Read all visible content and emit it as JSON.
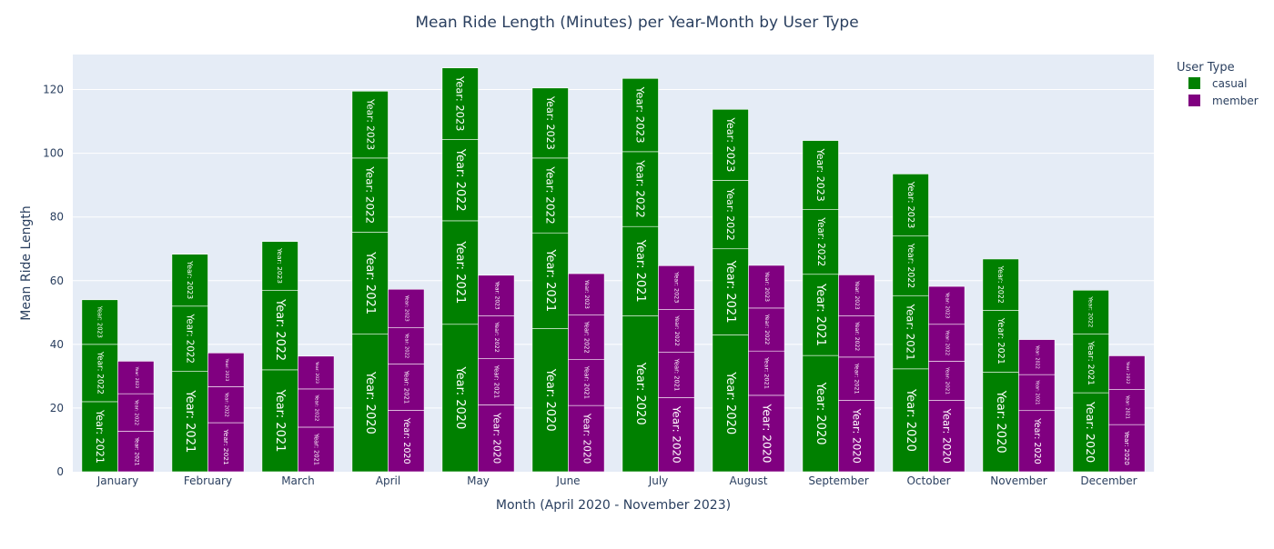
{
  "chart_data": {
    "type": "bar",
    "barmode": "group-stacked",
    "title": "Mean Ride Length (Minutes) per Year-Month by User Type",
    "xlabel": "Month (April 2020 - November 2023)",
    "ylabel": "Mean Ride Length",
    "ylim": [
      0,
      131
    ],
    "yticks": [
      0,
      20,
      40,
      60,
      80,
      100,
      120
    ],
    "grid": true,
    "legend": {
      "title": "User Type",
      "position": "top-right"
    },
    "categories": [
      "January",
      "February",
      "March",
      "April",
      "May",
      "June",
      "July",
      "August",
      "September",
      "October",
      "November",
      "December"
    ],
    "series": [
      {
        "name": "casual",
        "color": "#008000",
        "stacks": [
          [
            {
              "label": "Year: 2021",
              "value": 22
            },
            {
              "label": "Year: 2022",
              "value": 18
            },
            {
              "label": "Year: 2023",
              "value": 14
            }
          ],
          [
            {
              "label": "Year: 2021",
              "value": 31.5
            },
            {
              "label": "Year: 2022",
              "value": 20.5
            },
            {
              "label": "Year: 2023",
              "value": 16.3
            }
          ],
          [
            {
              "label": "Year: 2021",
              "value": 32
            },
            {
              "label": "Year: 2022",
              "value": 25
            },
            {
              "label": "Year: 2023",
              "value": 15.3
            }
          ],
          [
            {
              "label": "Year: 2020",
              "value": 43.2
            },
            {
              "label": "Year: 2021",
              "value": 32
            },
            {
              "label": "Year: 2022",
              "value": 23.3
            },
            {
              "label": "Year: 2023",
              "value": 21
            }
          ],
          [
            {
              "label": "Year: 2020",
              "value": 46.3
            },
            {
              "label": "Year: 2021",
              "value": 32.5
            },
            {
              "label": "Year: 2022",
              "value": 25.5
            },
            {
              "label": "Year: 2023",
              "value": 22.5
            }
          ],
          [
            {
              "label": "Year: 2020",
              "value": 45
            },
            {
              "label": "Year: 2021",
              "value": 30
            },
            {
              "label": "Year: 2022",
              "value": 23.5
            },
            {
              "label": "Year: 2023",
              "value": 22
            }
          ],
          [
            {
              "label": "Year: 2020",
              "value": 49
            },
            {
              "label": "Year: 2021",
              "value": 28
            },
            {
              "label": "Year: 2022",
              "value": 23.5
            },
            {
              "label": "Year: 2023",
              "value": 23
            }
          ],
          [
            {
              "label": "Year: 2020",
              "value": 43
            },
            {
              "label": "Year: 2021",
              "value": 27
            },
            {
              "label": "Year: 2022",
              "value": 21.5
            },
            {
              "label": "Year: 2023",
              "value": 22.3
            }
          ],
          [
            {
              "label": "Year: 2020",
              "value": 36.5
            },
            {
              "label": "Year: 2021",
              "value": 25.5
            },
            {
              "label": "Year: 2022",
              "value": 20.3
            },
            {
              "label": "Year: 2023",
              "value": 21.7
            }
          ],
          [
            {
              "label": "Year: 2020",
              "value": 32.3
            },
            {
              "label": "Year: 2021",
              "value": 23
            },
            {
              "label": "Year: 2022",
              "value": 18.7
            },
            {
              "label": "Year: 2023",
              "value": 19.5
            }
          ],
          [
            {
              "label": "Year: 2020",
              "value": 31.3
            },
            {
              "label": "Year: 2021",
              "value": 19.4
            },
            {
              "label": "Year: 2022",
              "value": 16.1
            }
          ],
          [
            {
              "label": "Year: 2020",
              "value": 24.8
            },
            {
              "label": "Year: 2021",
              "value": 18.5
            },
            {
              "label": "Year: 2022",
              "value": 13.7
            }
          ]
        ]
      },
      {
        "name": "member",
        "color": "#800080",
        "stacks": [
          [
            {
              "label": "Year: 2021",
              "value": 12.7
            },
            {
              "label": "Year: 2022",
              "value": 11.8
            },
            {
              "label": "Year: 2023",
              "value": 10.2
            }
          ],
          [
            {
              "label": "Year: 2021",
              "value": 15.4
            },
            {
              "label": "Year: 2022",
              "value": 11.3
            },
            {
              "label": "Year: 2023",
              "value": 10.6
            }
          ],
          [
            {
              "label": "Year: 2021",
              "value": 14
            },
            {
              "label": "Year: 2022",
              "value": 12
            },
            {
              "label": "Year: 2023",
              "value": 10.3
            }
          ],
          [
            {
              "label": "Year: 2020",
              "value": 19.3
            },
            {
              "label": "Year: 2021",
              "value": 14.5
            },
            {
              "label": "Year: 2022",
              "value": 11.5
            },
            {
              "label": "Year: 2023",
              "value": 12
            }
          ],
          [
            {
              "label": "Year: 2020",
              "value": 21
            },
            {
              "label": "Year: 2021",
              "value": 14.5
            },
            {
              "label": "Year: 2022",
              "value": 13.5
            },
            {
              "label": "Year: 2023",
              "value": 12.7
            }
          ],
          [
            {
              "label": "Year: 2020",
              "value": 20.8
            },
            {
              "label": "Year: 2021",
              "value": 14.4
            },
            {
              "label": "Year: 2022",
              "value": 14
            },
            {
              "label": "Year: 2023",
              "value": 13
            }
          ],
          [
            {
              "label": "Year: 2020",
              "value": 23.3
            },
            {
              "label": "Year: 2021",
              "value": 14.2
            },
            {
              "label": "Year: 2022",
              "value": 13.5
            },
            {
              "label": "Year: 2023",
              "value": 13.7
            }
          ],
          [
            {
              "label": "Year: 2020",
              "value": 24
            },
            {
              "label": "Year: 2021",
              "value": 13.9
            },
            {
              "label": "Year: 2022",
              "value": 13.5
            },
            {
              "label": "Year: 2023",
              "value": 13.4
            }
          ],
          [
            {
              "label": "Year: 2020",
              "value": 22.4
            },
            {
              "label": "Year: 2021",
              "value": 13.6
            },
            {
              "label": "Year: 2022",
              "value": 13
            },
            {
              "label": "Year: 2023",
              "value": 12.8
            }
          ],
          [
            {
              "label": "Year: 2020",
              "value": 22.4
            },
            {
              "label": "Year: 2021",
              "value": 12.3
            },
            {
              "label": "Year: 2022",
              "value": 11.6
            },
            {
              "label": "Year: 2023",
              "value": 11.9
            }
          ],
          [
            {
              "label": "Year: 2020",
              "value": 19.2
            },
            {
              "label": "Year: 2021",
              "value": 11.3
            },
            {
              "label": "Year: 2022",
              "value": 11
            }
          ],
          [
            {
              "label": "Year: 2020",
              "value": 14.8
            },
            {
              "label": "Year: 2021",
              "value": 11
            },
            {
              "label": "Year: 2022",
              "value": 10.6
            }
          ]
        ]
      }
    ]
  }
}
